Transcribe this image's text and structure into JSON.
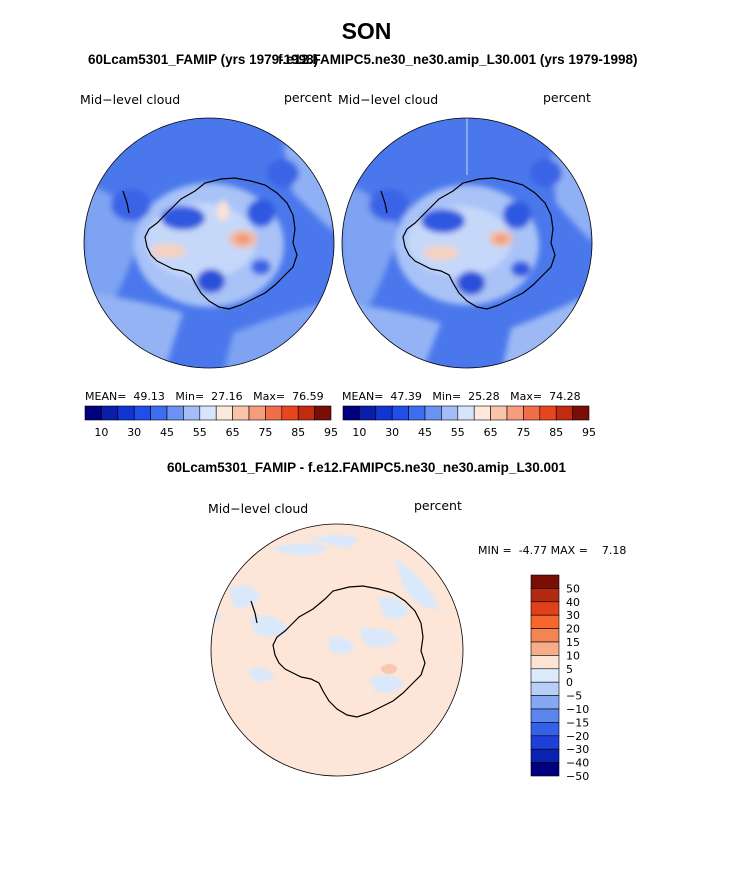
{
  "title": "SON",
  "panels": [
    {
      "subtitle": "60Lcam5301_FAMIP (yrs 1979-1998)",
      "variable": "Mid−level cloud",
      "units": "percent",
      "mean_label": "MEAN=",
      "mean": "49.13",
      "min_label": "Min=",
      "min": "27.16",
      "max_label": "Max=",
      "max": "76.59"
    },
    {
      "subtitle": "f.e12.FAMIPC5.ne30_ne30.amip_L30.001 (yrs 1979-1998)",
      "variable": "Mid−level cloud",
      "units": "percent",
      "mean_label": "MEAN=",
      "mean": "47.39",
      "min_label": "Min=",
      "min": "25.28",
      "max_label": "Max=",
      "max": "74.28"
    }
  ],
  "abs_colorbar": {
    "colors": [
      "#00007f",
      "#0a1fa8",
      "#1035d0",
      "#1f4fe8",
      "#3d6ef0",
      "#6b93f3",
      "#a2bdf7",
      "#d6e5fb",
      "#fde8dc",
      "#f9c4aa",
      "#f59d7d",
      "#f06f4b",
      "#e8461f",
      "#c22b10",
      "#7a0d05"
    ],
    "tick_labels": [
      "10",
      "30",
      "45",
      "55",
      "65",
      "75",
      "85",
      "95"
    ]
  },
  "diff": {
    "subtitle": "60Lcam5301_FAMIP - f.e12.FAMIPC5.ne30_ne30.amip_L30.001",
    "variable": "Mid−level cloud",
    "units": "percent",
    "min_label": "MIN =",
    "min": "-4.77",
    "max_label": "MAX =",
    "max": "7.18",
    "colorbar": {
      "colors": [
        "#7a0d05",
        "#b32a10",
        "#e0401a",
        "#f7662d",
        "#f38553",
        "#f6ad8c",
        "#fde3d3",
        "#ddeafa",
        "#b7cff7",
        "#86a8f3",
        "#5c86ee",
        "#3461e8",
        "#1d40d8",
        "#0a22b0",
        "#00007f"
      ],
      "tick_labels": [
        "50",
        "40",
        "30",
        "20",
        "15",
        "10",
        "5",
        "0",
        "−5",
        "−10",
        "−15",
        "−20",
        "−30",
        "−40",
        "−50"
      ]
    }
  }
}
